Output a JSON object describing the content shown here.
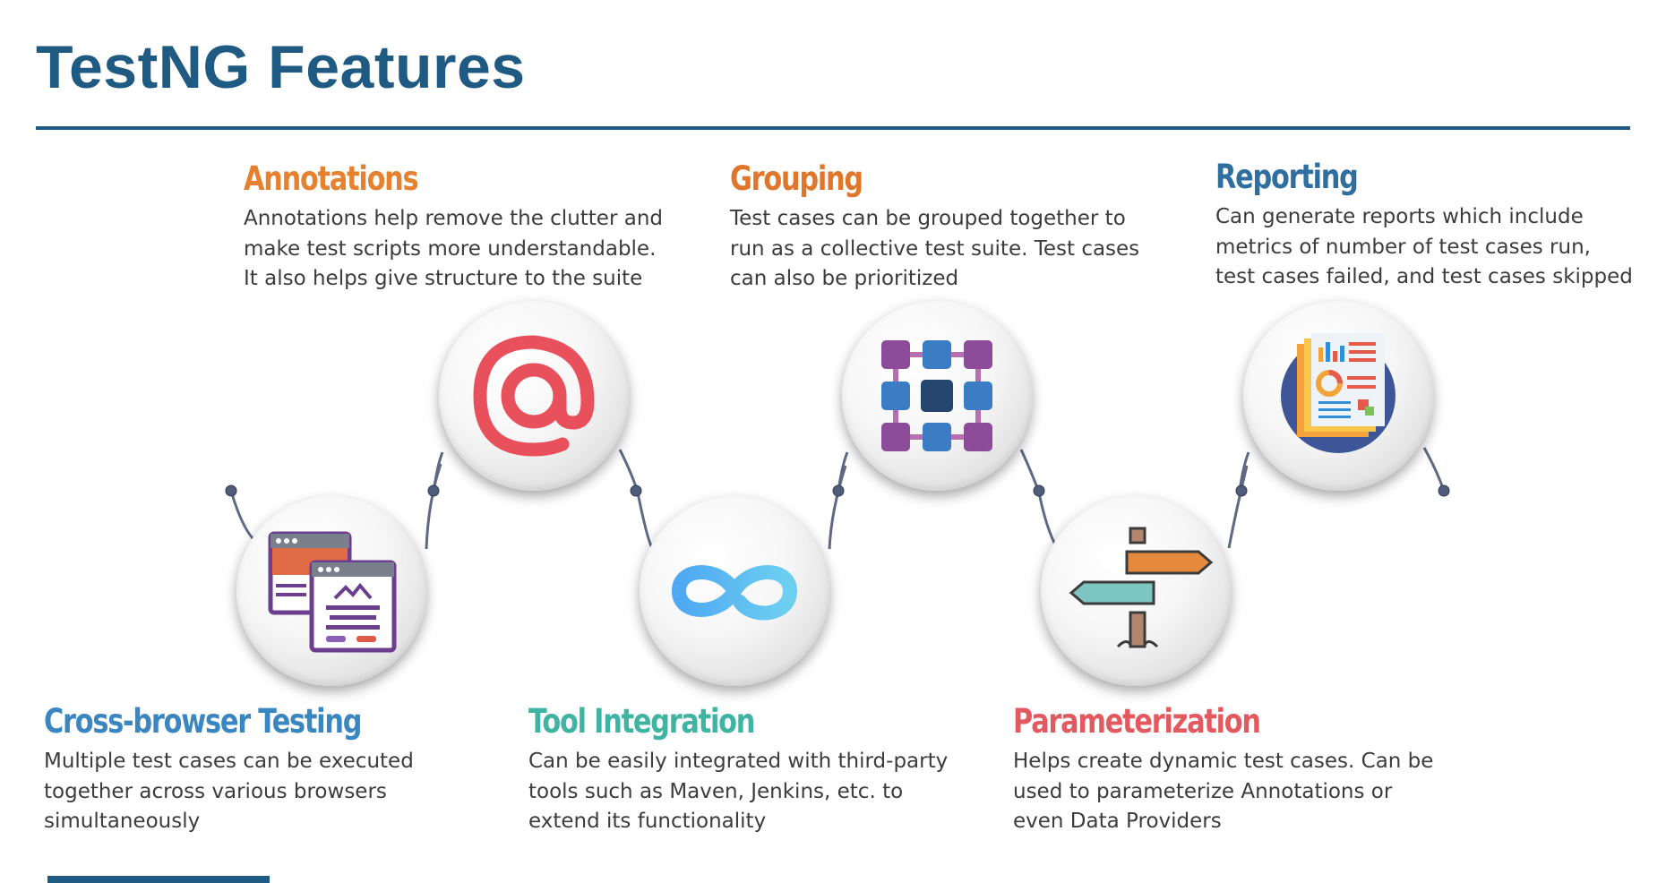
{
  "page": {
    "title": "TestNG Features"
  },
  "colors": {
    "title": "#1f5a82",
    "connector": "#5e6a85",
    "annotations": "#e6812f",
    "grouping": "#e0762a",
    "reporting": "#2f6f9f",
    "cross_browser": "#3a86c0",
    "tool_integration": "#3fb4a2",
    "parameterization": "#e25a60"
  },
  "features": [
    {
      "title": "Annotations",
      "description": "Annotations help remove the clutter and make test scripts more understandable. It also helps give structure to the suite",
      "icon": "at-sign-icon"
    },
    {
      "title": "Grouping",
      "description": "Test cases can be grouped together to run as a collective test suite. Test cases can also be prioritized",
      "icon": "grid-network-icon"
    },
    {
      "title": "Reporting",
      "description": "Can generate reports which include metrics of number of test cases run, test cases failed, and test cases skipped",
      "icon": "report-document-icon"
    },
    {
      "title": "Cross-browser Testing",
      "description": "Multiple test cases can be executed together across various browsers simultaneously",
      "icon": "browser-windows-icon"
    },
    {
      "title": "Tool Integration",
      "description": "Can be easily integrated with third-party tools such as Maven, Jenkins, etc. to extend its functionality",
      "icon": "infinity-icon"
    },
    {
      "title": "Parameterization",
      "description": "Helps create dynamic test cases. Can be used to parameterize Annotations or even Data Providers",
      "icon": "signpost-icon"
    }
  ]
}
